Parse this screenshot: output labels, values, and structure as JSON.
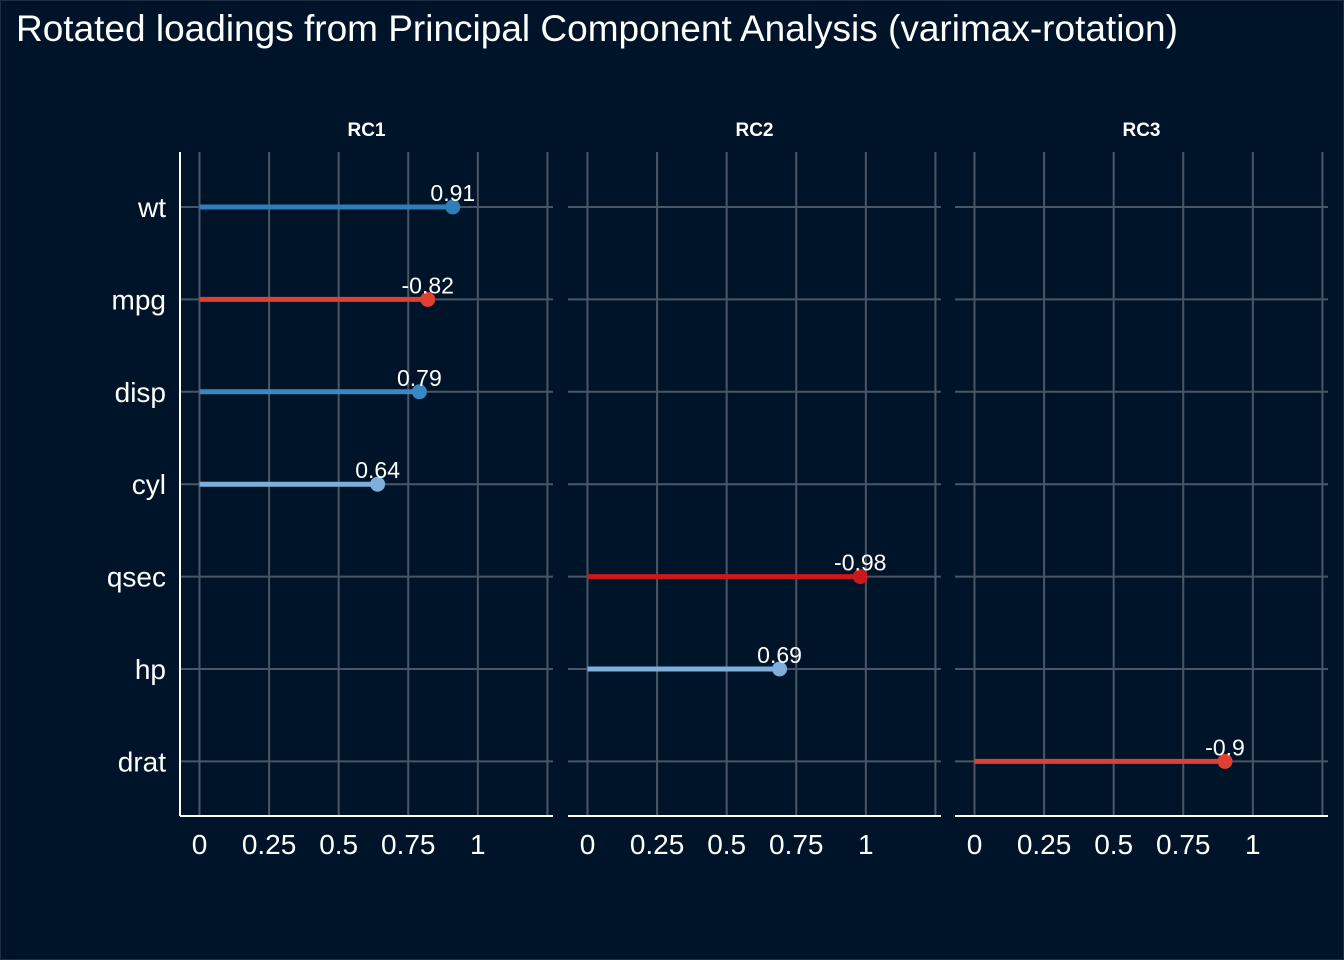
{
  "chart_data": {
    "type": "lollipop",
    "title": "Rotated loadings from Principal Component Analysis (varimax-rotation)",
    "variables": [
      "wt",
      "mpg",
      "disp",
      "cyl",
      "qsec",
      "hp",
      "drat"
    ],
    "x_ticks": [
      0,
      0.25,
      0.5,
      0.75,
      1
    ],
    "x_tick_labels": [
      "0",
      "0.25",
      "0.5",
      "0.75",
      "1"
    ],
    "xlim": [
      -0.07,
      1.27
    ],
    "grid": true,
    "panels": [
      {
        "name": "RC1",
        "points": [
          {
            "variable": "wt",
            "value": 0.91,
            "label": "0.91"
          },
          {
            "variable": "mpg",
            "value": -0.82,
            "label": "-0.82"
          },
          {
            "variable": "disp",
            "value": 0.79,
            "label": "0.79"
          },
          {
            "variable": "cyl",
            "value": 0.64,
            "label": "0.64"
          }
        ]
      },
      {
        "name": "RC2",
        "points": [
          {
            "variable": "qsec",
            "value": -0.98,
            "label": "-0.98"
          },
          {
            "variable": "hp",
            "value": 0.69,
            "label": "0.69"
          }
        ]
      },
      {
        "name": "RC3",
        "points": [
          {
            "variable": "drat",
            "value": -0.9,
            "label": "-0.9"
          }
        ]
      }
    ],
    "colors": {
      "background": "#001429",
      "grid": "#4a5665",
      "axis": "#ffffff",
      "text": "#ffffff",
      "negative_strong": "#cb181d",
      "negative": "#de4132",
      "positive_strong": "#2e7ebc",
      "positive": "#3b87c2",
      "positive_light": "#7eaedb"
    }
  }
}
